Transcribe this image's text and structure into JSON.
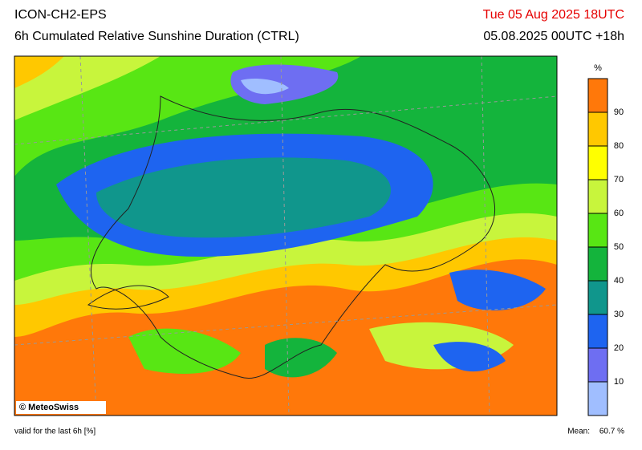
{
  "header": {
    "model": "ICON-CH2-EPS",
    "title": "6h Cumulated Relative Sunshine Duration (CTRL)",
    "valid_time": "Tue 05 Aug 2025 18UTC",
    "run": "05.08.2025 00UTC +18h"
  },
  "colorbar": {
    "unit": "%",
    "ticks": [
      10,
      20,
      30,
      40,
      50,
      60,
      70,
      80,
      90
    ],
    "colors": [
      "#a0beff",
      "#6e6ef2",
      "#1e64f0",
      "#10968c",
      "#14b43c",
      "#58e614",
      "#c8f53c",
      "#ffff00",
      "#ffc800",
      "#ff780a"
    ]
  },
  "map": {
    "credit": "© MeteoSwiss"
  },
  "footer": {
    "note": "valid for the last 6h [%]",
    "mean_label": "Mean:",
    "mean_value": "60.7 %"
  }
}
